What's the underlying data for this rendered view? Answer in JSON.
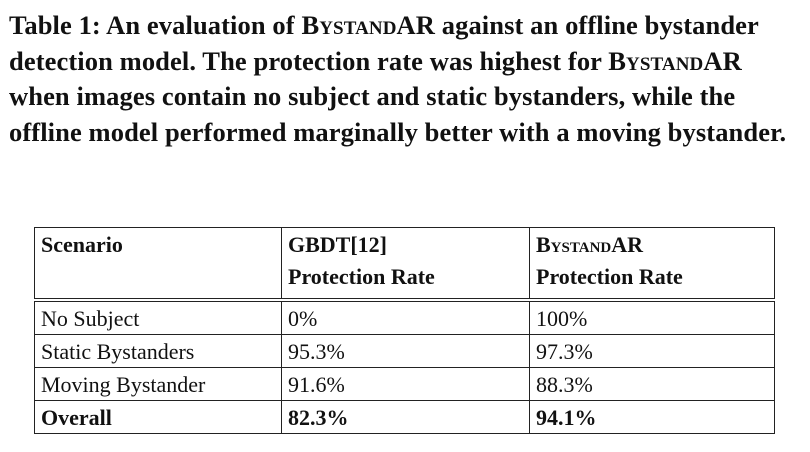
{
  "caption": {
    "prefix": "Table 1: An evaluation of ",
    "name1": "BystandAR",
    "mid1": " against an offline bystander detection model. The protection rate was highest for ",
    "name2": "BystandAR",
    "suffix": " when images contain no subject and static bystanders, while the offline model performed marginally better with a moving bystander."
  },
  "table": {
    "headers": [
      {
        "line1": "Scenario",
        "line2": ""
      },
      {
        "line1": "GBDT[12]",
        "line2": "Protection Rate"
      },
      {
        "line1": "BystandAR",
        "line2": "Protection Rate"
      }
    ],
    "rows": [
      {
        "scenario": "No Subject",
        "gbdt": "0%",
        "bystandar": "100%"
      },
      {
        "scenario": "Static Bystanders",
        "gbdt": "95.3%",
        "bystandar": "97.3%"
      },
      {
        "scenario": "Moving Bystander",
        "gbdt": "91.6%",
        "bystandar": "88.3%"
      },
      {
        "scenario": "Overall",
        "gbdt": "82.3%",
        "bystandar": "94.1%"
      }
    ]
  }
}
